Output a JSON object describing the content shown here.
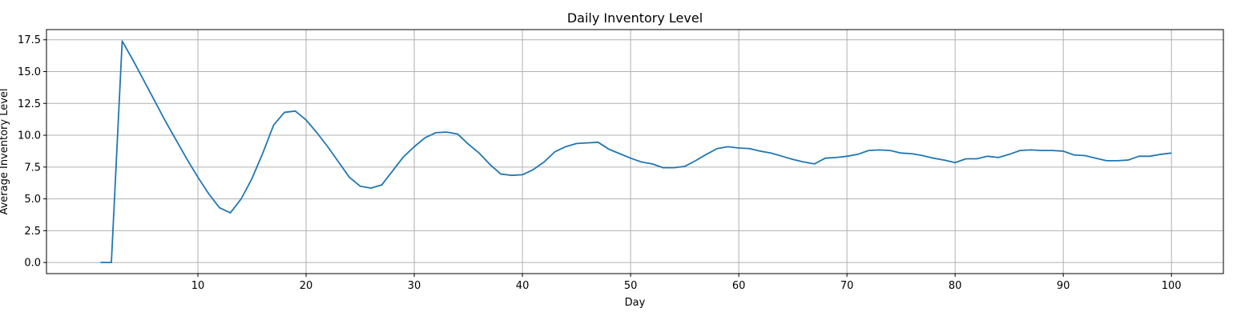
{
  "chart_data": {
    "type": "line",
    "title": "Daily Inventory Level",
    "xlabel": "Day",
    "ylabel": "Average Inventory Level",
    "xlim": [
      -4,
      104.8
    ],
    "ylim": [
      -0.87,
      18.3
    ],
    "xticks": [
      10,
      20,
      30,
      40,
      50,
      60,
      70,
      80,
      90,
      100
    ],
    "yticks": [
      0.0,
      2.5,
      5.0,
      7.5,
      10.0,
      12.5,
      15.0,
      17.5
    ],
    "ytick_labels": [
      "0.0",
      "2.5",
      "5.0",
      "7.5",
      "10.0",
      "12.5",
      "15.0",
      "17.5"
    ],
    "grid": true,
    "color": "#1f77b4",
    "series": [
      {
        "x": [
          1,
          2,
          3,
          4,
          5,
          6,
          7,
          8,
          9,
          10,
          11,
          12,
          13,
          14,
          15,
          16,
          17,
          18,
          19,
          20,
          21,
          22,
          23,
          24,
          25,
          26,
          27,
          28,
          29,
          30,
          31,
          32,
          33,
          34,
          35,
          36,
          37,
          38,
          39,
          40,
          41,
          42,
          43,
          44,
          45,
          46,
          47,
          48,
          49,
          50,
          51,
          52,
          53,
          54,
          55,
          56,
          57,
          58,
          59,
          60,
          61,
          62,
          63,
          64,
          65,
          66,
          67,
          68,
          69,
          70,
          71,
          72,
          73,
          74,
          75,
          76,
          77,
          78,
          79,
          80,
          81,
          82,
          83,
          84,
          85,
          86,
          87,
          88,
          89,
          90,
          91,
          92,
          93,
          94,
          95,
          96,
          97,
          98,
          99,
          100
        ],
        "values": [
          0,
          0,
          17.4,
          15.9,
          14.3,
          12.7,
          11.1,
          9.6,
          8.1,
          6.7,
          5.4,
          4.3,
          3.9,
          5.0,
          6.6,
          8.6,
          10.8,
          11.8,
          11.9,
          11.2,
          10.2,
          9.1,
          7.9,
          6.7,
          6.0,
          5.85,
          6.1,
          7.2,
          8.3,
          9.1,
          9.8,
          10.2,
          10.25,
          10.1,
          9.3,
          8.6,
          7.7,
          6.95,
          6.85,
          6.9,
          7.3,
          7.9,
          8.7,
          9.1,
          9.35,
          9.4,
          9.45,
          8.9,
          8.55,
          8.2,
          7.9,
          7.75,
          7.45,
          7.45,
          7.55,
          8.0,
          8.5,
          8.95,
          9.1,
          9.0,
          8.95,
          8.75,
          8.6,
          8.35,
          8.1,
          7.9,
          7.75,
          8.2,
          8.25,
          8.35,
          8.5,
          8.8,
          8.85,
          8.8,
          8.6,
          8.55,
          8.4,
          8.2,
          8.05,
          7.85,
          8.15,
          8.15,
          8.35,
          8.25,
          8.5,
          8.8,
          8.85,
          8.8,
          8.8,
          8.75,
          8.45,
          8.4,
          8.2,
          8.0,
          8.0,
          8.05,
          8.35,
          8.35,
          8.5,
          8.6
        ]
      }
    ]
  }
}
